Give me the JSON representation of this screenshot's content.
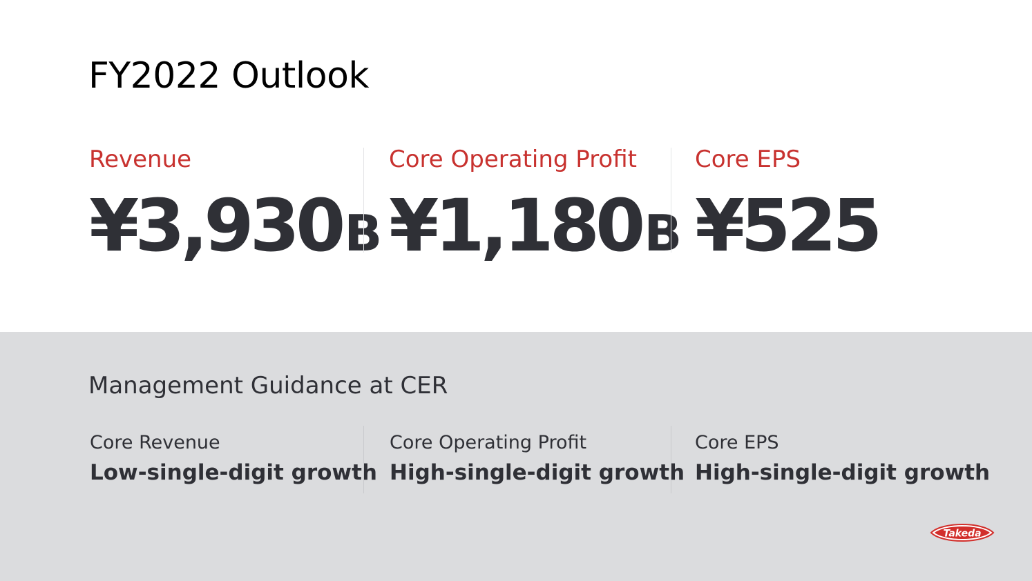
{
  "title": "FY2022 Outlook",
  "metrics": [
    {
      "label": "Revenue",
      "value": "¥3,930",
      "unit": "B"
    },
    {
      "label": "Core Operating Profit",
      "value": "¥1,180",
      "unit": "B"
    },
    {
      "label": "Core EPS",
      "value": "¥525",
      "unit": ""
    }
  ],
  "guidance": {
    "title": "Management Guidance at CER",
    "items": [
      {
        "label": "Core Revenue",
        "value": "Low-single-digit growth"
      },
      {
        "label": "Core Operating Profit",
        "value": "High-single-digit growth"
      },
      {
        "label": "Core EPS",
        "value": "High-single-digit growth"
      }
    ]
  },
  "logo": {
    "text": "Takeda",
    "color": "#d22f2b"
  },
  "colors": {
    "accent": "#c8322f",
    "text": "#2f3036",
    "panel": "#dbdcde"
  }
}
